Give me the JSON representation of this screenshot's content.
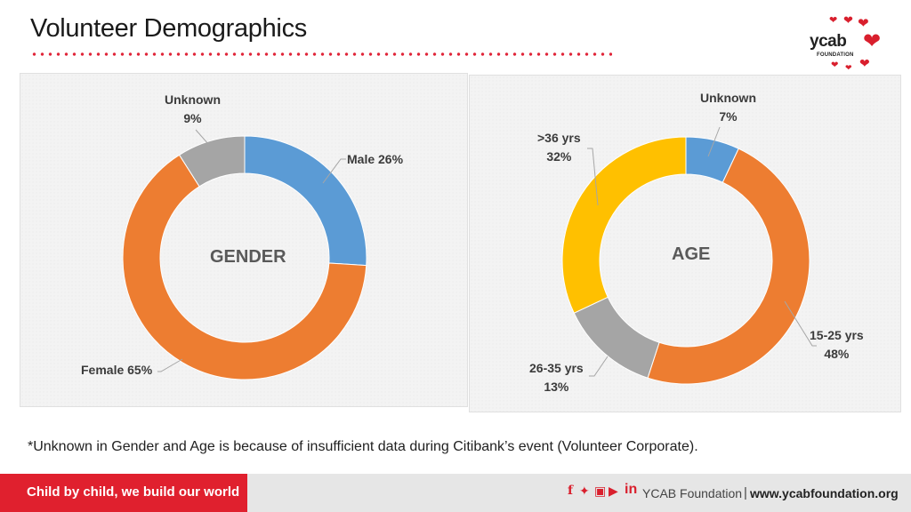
{
  "slide": {
    "title": "Volunteer Demographics",
    "footnote": "*Unknown in Gender and Age is because of insufficient data during Citibank’s event (Volunteer Corporate)."
  },
  "logo": {
    "name": "ycab",
    "sub": "FOUNDATION",
    "color": "#d91f2d"
  },
  "footer": {
    "tagline": "Child by child, we build our world",
    "org": "YCAB Foundation",
    "separator": "|",
    "url": "www.ycabfoundation.org",
    "social_icons": [
      "facebook-icon",
      "twitter-icon",
      "instagram-icon",
      "youtube-icon",
      "linkedin-icon"
    ]
  },
  "chart_data": [
    {
      "type": "pie",
      "donut": true,
      "center_label": "GENDER",
      "slices": [
        {
          "name": "Male",
          "value": 26,
          "label_line1": "Male 26%",
          "label_line2": "",
          "color": "#5b9bd5"
        },
        {
          "name": "Female",
          "value": 65,
          "label_line1": "Female 65%",
          "label_line2": "",
          "color": "#ed7d31"
        },
        {
          "name": "Unknown",
          "value": 9,
          "label_line1": "Unknown",
          "label_line2": "9%",
          "color": "#a5a5a5"
        }
      ]
    },
    {
      "type": "pie",
      "donut": true,
      "center_label": "AGE",
      "slices": [
        {
          "name": "Unknown",
          "value": 7,
          "label_line1": "Unknown",
          "label_line2": "7%",
          "color": "#5b9bd5"
        },
        {
          "name": "15-25 yrs",
          "value": 48,
          "label_line1": "15-25 yrs",
          "label_line2": "48%",
          "color": "#ed7d31"
        },
        {
          "name": "26-35 yrs",
          "value": 13,
          "label_line1": "26-35 yrs",
          "label_line2": "13%",
          "color": "#a5a5a5"
        },
        {
          "name": ">36 yrs",
          "value": 32,
          "label_line1": ">36 yrs",
          "label_line2": "32%",
          "color": "#ffc000"
        }
      ]
    }
  ]
}
